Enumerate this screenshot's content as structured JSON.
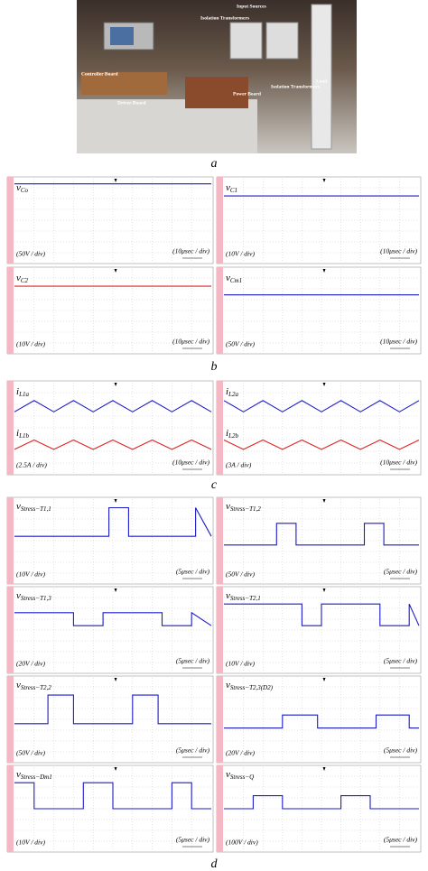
{
  "photo": {
    "labels": [
      "Input Sources",
      "Isolation Transformers",
      "Controller Board",
      "Driver Board",
      "Power Board",
      "Isolation Transformers",
      "Load"
    ],
    "caption": "a"
  },
  "figure_b": {
    "caption": "b",
    "panels": [
      {
        "signal": "v",
        "subscript": "Co",
        "volts_per_div": "(50V / div)",
        "time_per_div": "(10μsec / div)"
      },
      {
        "signal": "v",
        "subscript": "C1",
        "volts_per_div": "(10V / div)",
        "time_per_div": "(10μsec / div)"
      },
      {
        "signal": "v",
        "subscript": "C2",
        "volts_per_div": "(10V / div)",
        "time_per_div": "(10μsec / div)"
      },
      {
        "signal": "v",
        "subscript": "Cm1",
        "volts_per_div": "(50V / div)",
        "time_per_div": "(10μsec / div)"
      }
    ]
  },
  "figure_c": {
    "caption": "c",
    "panels": [
      {
        "traces": [
          {
            "signal": "i",
            "subscript": "L1a"
          },
          {
            "signal": "i",
            "subscript": "L1b"
          }
        ],
        "volts_per_div": "(2.5A / div)",
        "time_per_div": "(10μsec / div)"
      },
      {
        "traces": [
          {
            "signal": "i",
            "subscript": "L2a"
          },
          {
            "signal": "i",
            "subscript": "L2b"
          }
        ],
        "volts_per_div": "(3A / div)",
        "time_per_div": "(10μsec / div)"
      }
    ]
  },
  "figure_d": {
    "caption": "d",
    "panels": [
      {
        "signal": "v",
        "subscript": "Stress−T1,1",
        "volts_per_div": "(10V / div)",
        "time_per_div": "(5μsec / div)"
      },
      {
        "signal": "v",
        "subscript": "Stress−T1,2",
        "volts_per_div": "(50V / div)",
        "time_per_div": "(5μsec / div)"
      },
      {
        "signal": "v",
        "subscript": "Stress−T1,3",
        "volts_per_div": "(20V / div)",
        "time_per_div": "(5μsec / div)"
      },
      {
        "signal": "v",
        "subscript": "Stress−T2,1",
        "volts_per_div": "(10V / div)",
        "time_per_div": "(5μsec / div)"
      },
      {
        "signal": "v",
        "subscript": "Stress−T2,2",
        "volts_per_div": "(50V / div)",
        "time_per_div": "(5μsec / div)"
      },
      {
        "signal": "v",
        "subscript": "Stress−T2,3(D2)",
        "volts_per_div": "(20V / div)",
        "time_per_div": "(5μsec / div)"
      },
      {
        "signal": "v",
        "subscript": "Stress−Dm1",
        "volts_per_div": "(10V / div)",
        "time_per_div": "(5μsec / div)"
      },
      {
        "signal": "v",
        "subscript": "Stress−Q",
        "volts_per_div": "(100V / div)",
        "time_per_div": "(5μsec / div)"
      }
    ]
  }
}
